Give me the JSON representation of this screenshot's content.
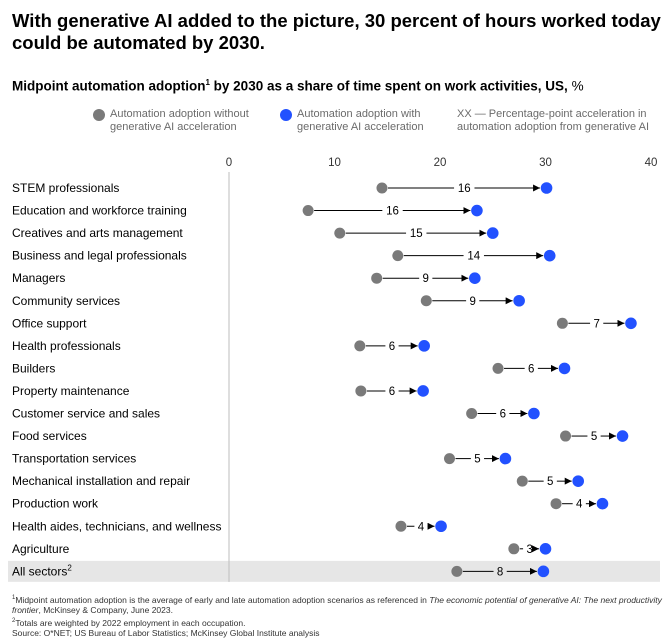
{
  "title": "With generative AI added to the picture, 30 percent of hours worked today could be automated by 2030.",
  "subtitle": {
    "text_before": "Midpoint automation adoption",
    "sup": "1",
    "text_after": " by 2030 as a share of time spent on work activities, US,",
    "unit": " %"
  },
  "legend": {
    "without_label": "Automation adoption without generative AI acceleration",
    "with_label": "Automation adoption with generative AI acceleration",
    "accel_label": "XX — Percentage-point acceleration in automation adoption from generative AI"
  },
  "colors": {
    "without": "#7a7a7a",
    "with": "#2251ff",
    "highlight_row": "#e6e6e6",
    "zero_axis": "#bdbdbd"
  },
  "chart_data": {
    "type": "dumbbell",
    "xlim": [
      0,
      40
    ],
    "xticks": [
      0,
      10,
      20,
      30,
      40
    ],
    "categories": [
      {
        "label": "STEM professionals",
        "without": 14.5,
        "with": 30.1,
        "accel": "16"
      },
      {
        "label": "Education and workforce training",
        "without": 7.5,
        "with": 23.5,
        "accel": "16"
      },
      {
        "label": "Creatives and arts management",
        "without": 10.5,
        "with": 25.0,
        "accel": "15"
      },
      {
        "label": "Business and legal professionals",
        "without": 16.0,
        "with": 30.4,
        "accel": "14"
      },
      {
        "label": "Managers",
        "without": 14.0,
        "with": 23.3,
        "accel": "9"
      },
      {
        "label": "Community services",
        "without": 18.7,
        "with": 27.5,
        "accel": "9"
      },
      {
        "label": "Office support",
        "without": 31.6,
        "with": 38.1,
        "accel": "7"
      },
      {
        "label": "Health professionals",
        "without": 12.4,
        "with": 18.5,
        "accel": "6"
      },
      {
        "label": "Builders",
        "without": 25.5,
        "with": 31.8,
        "accel": "6"
      },
      {
        "label": "Property maintenance",
        "without": 12.5,
        "with": 18.4,
        "accel": "6"
      },
      {
        "label": "Customer service and sales",
        "without": 23.0,
        "with": 28.9,
        "accel": "6"
      },
      {
        "label": "Food services",
        "without": 31.9,
        "with": 37.3,
        "accel": "5"
      },
      {
        "label": "Transportation services",
        "without": 20.9,
        "with": 26.2,
        "accel": "5"
      },
      {
        "label": "Mechanical installation and repair",
        "without": 27.8,
        "with": 33.1,
        "accel": "5"
      },
      {
        "label": "Production work",
        "without": 31.0,
        "with": 35.4,
        "accel": "4"
      },
      {
        "label": "Health aides, technicians, and wellness",
        "without": 16.3,
        "with": 20.1,
        "accel": "4"
      },
      {
        "label": "Agriculture",
        "without": 27.0,
        "with": 30.0,
        "accel": "3"
      },
      {
        "label": "All sectors",
        "label_sup": "2",
        "without": 21.6,
        "with": 29.8,
        "accel": "8",
        "highlight": true
      }
    ]
  },
  "footnotes": {
    "fn1_sup": "1",
    "fn1_text": "Midpoint automation adoption is the average of early and late automation adoption scenarios as referenced in ",
    "fn1_italic": "The economic potential of generative AI: The next productivity frontier",
    "fn1_tail": ", McKinsey & Company, June 2023.",
    "fn2_sup": "2",
    "fn2_text": "Totals are weighted by 2022 employment in each occupation.",
    "source": "Source: O*NET; US Bureau of Labor Statistics; McKinsey Global Institute analysis"
  }
}
